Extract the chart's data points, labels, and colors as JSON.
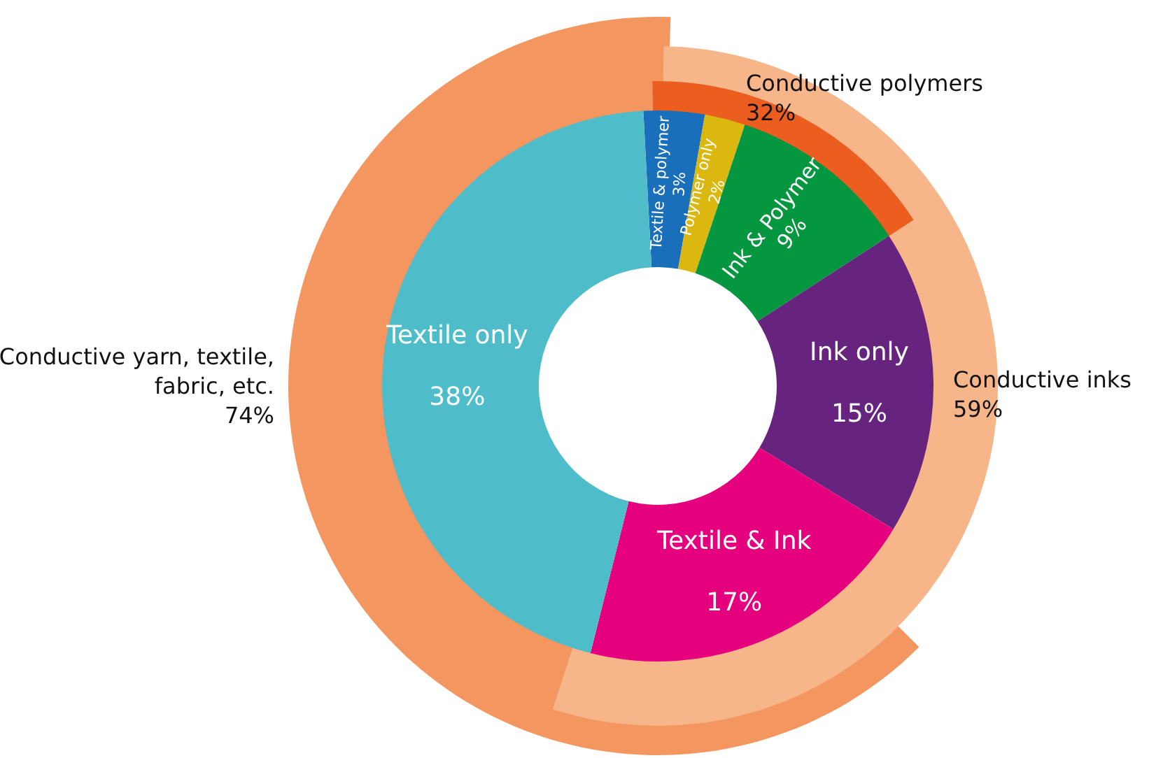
{
  "chart_data": [
    {
      "type": "donut",
      "categories": [
        "Textile & polymer",
        "Polymer only",
        "Ink & Polymer",
        "Ink only",
        "Textile & Ink",
        "Textile only"
      ],
      "values": [
        3,
        2,
        9,
        15,
        17,
        38
      ],
      "value_labels": [
        "3%",
        "2%",
        "9%",
        "15%",
        "17%",
        "38%"
      ],
      "colors": [
        "#1a6fba",
        "#dbb80f",
        "#059640",
        "#66247f",
        "#e5007e",
        "#4fbdc9"
      ]
    },
    {
      "type": "other",
      "categories": [
        "Conductive yarn, textile, fabric, etc.",
        "Conductive inks",
        "Conductive polymers"
      ],
      "values": [
        74,
        59,
        32
      ],
      "value_labels": [
        "74%",
        "59%",
        "32%"
      ],
      "colors": [
        "#f39660",
        "#f7b58a",
        "#eb5e20"
      ]
    }
  ]
}
